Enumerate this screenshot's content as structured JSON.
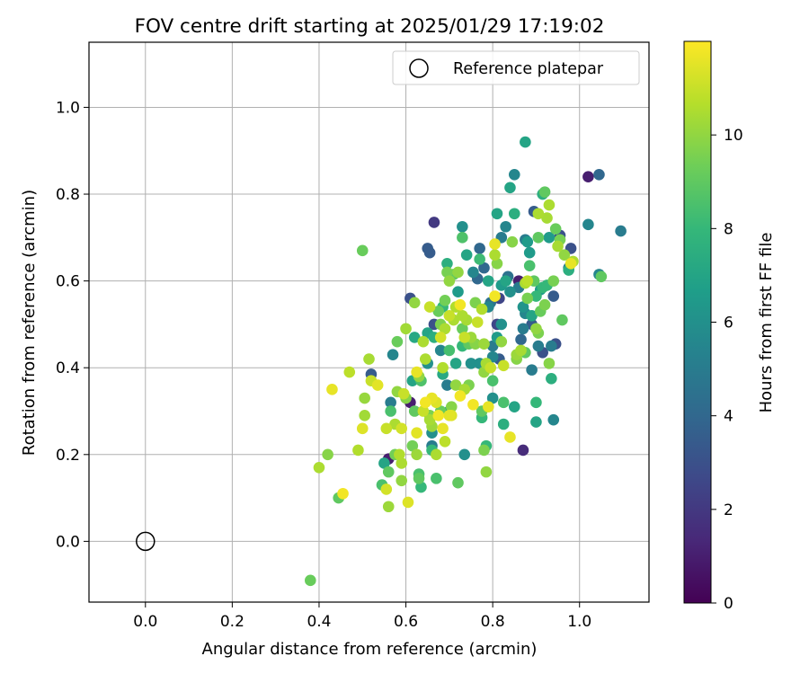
{
  "chart_data": {
    "type": "scatter",
    "title": "FOV centre drift starting at 2025/01/29 17:19:02",
    "xlabel": "Angular distance from reference (arcmin)",
    "ylabel": "Rotation from reference (arcmin)",
    "xlim": [
      -0.13,
      1.16
    ],
    "ylim": [
      -0.14,
      1.15
    ],
    "xticks": [
      0.0,
      0.2,
      0.4,
      0.6,
      0.8,
      1.0
    ],
    "xtick_labels": [
      "0.0",
      "0.2",
      "0.4",
      "0.6",
      "0.8",
      "1.0"
    ],
    "yticks": [
      0.0,
      0.2,
      0.4,
      0.6,
      0.8,
      1.0
    ],
    "ytick_labels": [
      "0.0",
      "0.2",
      "0.4",
      "0.6",
      "0.8",
      "1.0"
    ],
    "grid": true,
    "legend": {
      "placement": "top-right",
      "entries": [
        {
          "label": "Reference platepar",
          "marker": "hollow-circle",
          "x": 0.0,
          "y": 0.0
        }
      ]
    },
    "colorbar": {
      "label": "Hours from first FF file",
      "range": [
        0,
        12
      ],
      "ticks": [
        0,
        2,
        4,
        6,
        8,
        10
      ],
      "tick_labels": [
        "0",
        "2",
        "4",
        "6",
        "8",
        "10"
      ],
      "colormap": "viridis",
      "colors": [
        "#440154",
        "#482878",
        "#3e4989",
        "#31688e",
        "#26828e",
        "#1f9e89",
        "#35b779",
        "#6ece58",
        "#b5de2b",
        "#fde725"
      ]
    },
    "points": [
      [
        0.38,
        -0.09,
        9.2
      ],
      [
        0.4,
        0.17,
        10.5
      ],
      [
        0.42,
        0.2,
        9.8
      ],
      [
        0.43,
        0.35,
        11.6
      ],
      [
        0.445,
        0.1,
        9.0
      ],
      [
        0.455,
        0.11,
        11.8
      ],
      [
        0.47,
        0.39,
        10.8
      ],
      [
        0.49,
        0.21,
        10.6
      ],
      [
        0.5,
        0.26,
        11.4
      ],
      [
        0.5,
        0.67,
        9.2
      ],
      [
        0.505,
        0.33,
        10.1
      ],
      [
        0.505,
        0.29,
        10.3
      ],
      [
        0.515,
        0.42,
        10.4
      ],
      [
        0.52,
        0.385,
        3.5
      ],
      [
        0.52,
        0.37,
        11.0
      ],
      [
        0.535,
        0.36,
        11.5
      ],
      [
        0.545,
        0.13,
        8.5
      ],
      [
        0.55,
        0.18,
        7.0
      ],
      [
        0.555,
        0.26,
        11.0
      ],
      [
        0.555,
        0.12,
        11.2
      ],
      [
        0.56,
        0.08,
        10.2
      ],
      [
        0.56,
        0.16,
        9.0
      ],
      [
        0.56,
        0.19,
        1.0
      ],
      [
        0.565,
        0.3,
        8.5
      ],
      [
        0.565,
        0.32,
        5.0
      ],
      [
        0.57,
        0.43,
        5.5
      ],
      [
        0.575,
        0.27,
        10.5
      ],
      [
        0.575,
        0.2,
        9.4
      ],
      [
        0.58,
        0.345,
        10.0
      ],
      [
        0.58,
        0.46,
        9.2
      ],
      [
        0.585,
        0.2,
        10.6
      ],
      [
        0.59,
        0.14,
        10.0
      ],
      [
        0.59,
        0.18,
        10.5
      ],
      [
        0.59,
        0.26,
        11.2
      ],
      [
        0.595,
        0.34,
        11.0
      ],
      [
        0.6,
        0.49,
        10.3
      ],
      [
        0.6,
        0.33,
        9.8
      ],
      [
        0.605,
        0.09,
        11.4
      ],
      [
        0.61,
        0.32,
        1.0
      ],
      [
        0.61,
        0.56,
        3.0
      ],
      [
        0.615,
        0.22,
        9.4
      ],
      [
        0.615,
        0.37,
        7.0
      ],
      [
        0.62,
        0.3,
        9.0
      ],
      [
        0.62,
        0.47,
        7.2
      ],
      [
        0.62,
        0.55,
        10.0
      ],
      [
        0.625,
        0.2,
        10.2
      ],
      [
        0.625,
        0.25,
        11.5
      ],
      [
        0.625,
        0.39,
        11.6
      ],
      [
        0.63,
        0.155,
        8.5
      ],
      [
        0.63,
        0.145,
        9.0
      ],
      [
        0.63,
        0.38,
        10.0
      ],
      [
        0.635,
        0.37,
        8.6
      ],
      [
        0.635,
        0.125,
        8.0
      ],
      [
        0.64,
        0.3,
        11.0
      ],
      [
        0.64,
        0.46,
        10.5
      ],
      [
        0.645,
        0.32,
        11.8
      ],
      [
        0.645,
        0.42,
        10.5
      ],
      [
        0.65,
        0.41,
        6.0
      ],
      [
        0.65,
        0.48,
        7.0
      ],
      [
        0.65,
        0.675,
        3.5
      ],
      [
        0.655,
        0.28,
        10.4
      ],
      [
        0.655,
        0.29,
        9.6
      ],
      [
        0.655,
        0.54,
        11.0
      ],
      [
        0.655,
        0.665,
        3.5
      ],
      [
        0.66,
        0.25,
        6.0
      ],
      [
        0.66,
        0.265,
        10.2
      ],
      [
        0.66,
        0.21,
        8.0
      ],
      [
        0.66,
        0.22,
        5.0
      ],
      [
        0.66,
        0.33,
        11.6
      ],
      [
        0.665,
        0.5,
        3.0
      ],
      [
        0.665,
        0.47,
        7.5
      ],
      [
        0.665,
        0.735,
        2.0
      ],
      [
        0.67,
        0.2,
        10.5
      ],
      [
        0.67,
        0.145,
        8.5
      ],
      [
        0.67,
        0.32,
        11.4
      ],
      [
        0.675,
        0.53,
        9.2
      ],
      [
        0.675,
        0.29,
        11.8
      ],
      [
        0.68,
        0.47,
        11.2
      ],
      [
        0.68,
        0.44,
        5.5
      ],
      [
        0.68,
        0.5,
        9.6
      ],
      [
        0.68,
        0.3,
        9.2
      ],
      [
        0.685,
        0.385,
        7.2
      ],
      [
        0.685,
        0.26,
        11.6
      ],
      [
        0.685,
        0.4,
        10.6
      ],
      [
        0.685,
        0.54,
        8.0
      ],
      [
        0.69,
        0.23,
        10.8
      ],
      [
        0.69,
        0.555,
        9.4
      ],
      [
        0.69,
        0.49,
        10.5
      ],
      [
        0.695,
        0.36,
        5.0
      ],
      [
        0.695,
        0.62,
        9.5
      ],
      [
        0.695,
        0.64,
        7.5
      ],
      [
        0.7,
        0.44,
        8.4
      ],
      [
        0.7,
        0.52,
        11.0
      ],
      [
        0.7,
        0.6,
        10.0
      ],
      [
        0.7,
        0.29,
        11.5
      ],
      [
        0.7,
        0.3,
        6.0
      ],
      [
        0.705,
        0.29,
        11.4
      ],
      [
        0.705,
        0.31,
        9.8
      ],
      [
        0.71,
        0.51,
        10.5
      ],
      [
        0.71,
        0.615,
        9.0
      ],
      [
        0.715,
        0.36,
        10.0
      ],
      [
        0.715,
        0.41,
        7.0
      ],
      [
        0.715,
        0.54,
        10.6
      ],
      [
        0.72,
        0.575,
        6.5
      ],
      [
        0.72,
        0.62,
        10.0
      ],
      [
        0.72,
        0.135,
        9.0
      ],
      [
        0.725,
        0.335,
        11.8
      ],
      [
        0.725,
        0.545,
        11.8
      ],
      [
        0.73,
        0.52,
        10.5
      ],
      [
        0.73,
        0.49,
        9.2
      ],
      [
        0.73,
        0.45,
        8.0
      ],
      [
        0.73,
        0.7,
        8.6
      ],
      [
        0.73,
        0.725,
        6.0
      ],
      [
        0.735,
        0.35,
        10.4
      ],
      [
        0.735,
        0.47,
        11.0
      ],
      [
        0.735,
        0.2,
        6.0
      ],
      [
        0.74,
        0.66,
        7.0
      ],
      [
        0.74,
        0.51,
        10.4
      ],
      [
        0.745,
        0.455,
        9.0
      ],
      [
        0.745,
        0.36,
        9.6
      ],
      [
        0.75,
        0.47,
        10.2
      ],
      [
        0.75,
        0.41,
        6.0
      ],
      [
        0.755,
        0.315,
        11.8
      ],
      [
        0.755,
        0.62,
        5.5
      ],
      [
        0.76,
        0.55,
        9.6
      ],
      [
        0.76,
        0.455,
        9.8
      ],
      [
        0.765,
        0.505,
        11.0
      ],
      [
        0.765,
        0.605,
        4.0
      ],
      [
        0.77,
        0.41,
        6.0
      ],
      [
        0.77,
        0.675,
        4.0
      ],
      [
        0.77,
        0.65,
        8.2
      ],
      [
        0.775,
        0.535,
        10.6
      ],
      [
        0.775,
        0.3,
        9.0
      ],
      [
        0.775,
        0.285,
        8.0
      ],
      [
        0.78,
        0.39,
        10.0
      ],
      [
        0.78,
        0.21,
        9.6
      ],
      [
        0.78,
        0.455,
        10.2
      ],
      [
        0.78,
        0.63,
        4.0
      ],
      [
        0.785,
        0.41,
        10.4
      ],
      [
        0.785,
        0.22,
        8.0
      ],
      [
        0.785,
        0.16,
        10.0
      ],
      [
        0.79,
        0.31,
        11.6
      ],
      [
        0.79,
        0.6,
        7.0
      ],
      [
        0.79,
        0.54,
        5.5
      ],
      [
        0.795,
        0.4,
        11.0
      ],
      [
        0.795,
        0.55,
        4.5
      ],
      [
        0.8,
        0.425,
        5.5
      ],
      [
        0.8,
        0.45,
        5.0
      ],
      [
        0.8,
        0.33,
        6.0
      ],
      [
        0.8,
        0.37,
        8.5
      ],
      [
        0.805,
        0.685,
        11.6
      ],
      [
        0.805,
        0.66,
        10.5
      ],
      [
        0.805,
        0.565,
        11.8
      ],
      [
        0.81,
        0.64,
        9.8
      ],
      [
        0.81,
        0.755,
        7.0
      ],
      [
        0.81,
        0.47,
        6.5
      ],
      [
        0.81,
        0.5,
        2.5
      ],
      [
        0.815,
        0.42,
        3.5
      ],
      [
        0.815,
        0.56,
        2.5
      ],
      [
        0.82,
        0.46,
        10.0
      ],
      [
        0.82,
        0.5,
        6.0
      ],
      [
        0.82,
        0.59,
        6.5
      ],
      [
        0.82,
        0.7,
        5.0
      ],
      [
        0.825,
        0.32,
        8.5
      ],
      [
        0.825,
        0.27,
        7.5
      ],
      [
        0.825,
        0.405,
        11.0
      ],
      [
        0.83,
        0.6,
        7.0
      ],
      [
        0.83,
        0.725,
        5.5
      ],
      [
        0.835,
        0.61,
        4.5
      ],
      [
        0.84,
        0.815,
        7.0
      ],
      [
        0.84,
        0.575,
        6.0
      ],
      [
        0.84,
        0.24,
        11.6
      ],
      [
        0.845,
        0.69,
        9.8
      ],
      [
        0.85,
        0.845,
        5.5
      ],
      [
        0.85,
        0.755,
        7.5
      ],
      [
        0.85,
        0.31,
        7.0
      ],
      [
        0.855,
        0.42,
        9.8
      ],
      [
        0.855,
        0.43,
        10.2
      ],
      [
        0.86,
        0.6,
        1.0
      ],
      [
        0.86,
        0.585,
        5.0
      ],
      [
        0.865,
        0.44,
        10.4
      ],
      [
        0.865,
        0.465,
        4.0
      ],
      [
        0.87,
        0.49,
        5.0
      ],
      [
        0.87,
        0.21,
        1.5
      ],
      [
        0.87,
        0.54,
        6.2
      ],
      [
        0.875,
        0.92,
        7.0
      ],
      [
        0.875,
        0.595,
        10.5
      ],
      [
        0.875,
        0.695,
        5.0
      ],
      [
        0.875,
        0.525,
        5.5
      ],
      [
        0.875,
        0.435,
        9.0
      ],
      [
        0.88,
        0.6,
        10.8
      ],
      [
        0.88,
        0.56,
        9.5
      ],
      [
        0.88,
        0.69,
        6.5
      ],
      [
        0.885,
        0.665,
        6.5
      ],
      [
        0.885,
        0.635,
        8.5
      ],
      [
        0.89,
        0.395,
        5.0
      ],
      [
        0.89,
        0.52,
        7.0
      ],
      [
        0.89,
        0.5,
        3.5
      ],
      [
        0.895,
        0.6,
        9.0
      ],
      [
        0.895,
        0.76,
        3.5
      ],
      [
        0.9,
        0.565,
        8.0
      ],
      [
        0.9,
        0.49,
        10.0
      ],
      [
        0.9,
        0.32,
        8.0
      ],
      [
        0.9,
        0.275,
        7.0
      ],
      [
        0.905,
        0.48,
        9.6
      ],
      [
        0.905,
        0.45,
        5.0
      ],
      [
        0.905,
        0.755,
        10.5
      ],
      [
        0.905,
        0.7,
        9.0
      ],
      [
        0.91,
        0.53,
        9.2
      ],
      [
        0.91,
        0.58,
        6.5
      ],
      [
        0.915,
        0.435,
        3.0
      ],
      [
        0.915,
        0.585,
        8.0
      ],
      [
        0.915,
        0.8,
        7.5
      ],
      [
        0.92,
        0.805,
        9.0
      ],
      [
        0.92,
        0.545,
        9.6
      ],
      [
        0.925,
        0.745,
        10.4
      ],
      [
        0.925,
        0.59,
        8.0
      ],
      [
        0.93,
        0.7,
        6.5
      ],
      [
        0.93,
        0.41,
        9.8
      ],
      [
        0.93,
        0.775,
        10.5
      ],
      [
        0.935,
        0.45,
        5.0
      ],
      [
        0.935,
        0.375,
        7.5
      ],
      [
        0.94,
        0.6,
        9.5
      ],
      [
        0.94,
        0.565,
        3.5
      ],
      [
        0.94,
        0.28,
        5.5
      ],
      [
        0.945,
        0.455,
        3.0
      ],
      [
        0.945,
        0.72,
        9.2
      ],
      [
        0.95,
        0.68,
        10.4
      ],
      [
        0.955,
        0.705,
        3.0
      ],
      [
        0.955,
        0.695,
        9.5
      ],
      [
        0.96,
        0.51,
        9.0
      ],
      [
        0.965,
        0.66,
        10.0
      ],
      [
        0.975,
        0.63,
        5.0
      ],
      [
        0.975,
        0.625,
        7.5
      ],
      [
        0.98,
        0.64,
        11.6
      ],
      [
        0.98,
        0.675,
        3.0
      ],
      [
        0.985,
        0.645,
        10.5
      ],
      [
        1.02,
        0.84,
        1.0
      ],
      [
        1.02,
        0.73,
        5.5
      ],
      [
        1.045,
        0.845,
        4.0
      ],
      [
        1.045,
        0.615,
        5.5
      ],
      [
        1.05,
        0.61,
        9.0
      ],
      [
        1.095,
        0.715,
        5.0
      ]
    ]
  }
}
